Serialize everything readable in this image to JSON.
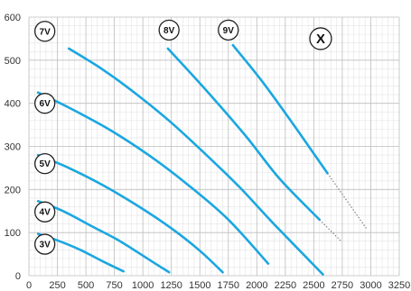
{
  "chart_data": {
    "type": "line",
    "title": "",
    "xlabel": "",
    "ylabel": "",
    "xlim": [
      0,
      3250
    ],
    "ylim": [
      0,
      600
    ],
    "x_ticks": [
      0,
      250,
      500,
      750,
      1000,
      1250,
      1500,
      1750,
      2000,
      2250,
      2500,
      2750,
      3000,
      3250
    ],
    "y_ticks": [
      0,
      100,
      200,
      300,
      400,
      500,
      600
    ],
    "grid": true,
    "minor_grid": true,
    "legend": "none",
    "colors": {
      "curve": "#1aa7e0",
      "extension": "#777777"
    },
    "series": [
      {
        "name": "3V",
        "points": [
          [
            80,
            97
          ],
          [
            250,
            82
          ],
          [
            450,
            60
          ],
          [
            650,
            33
          ],
          [
            830,
            10
          ]
        ]
      },
      {
        "name": "4V",
        "points": [
          [
            80,
            173
          ],
          [
            300,
            150
          ],
          [
            550,
            115
          ],
          [
            800,
            80
          ],
          [
            1050,
            38
          ],
          [
            1230,
            8
          ]
        ]
      },
      {
        "name": "5V",
        "points": [
          [
            80,
            280
          ],
          [
            350,
            250
          ],
          [
            650,
            210
          ],
          [
            950,
            163
          ],
          [
            1250,
            110
          ],
          [
            1500,
            58
          ],
          [
            1700,
            8
          ]
        ]
      },
      {
        "name": "6V",
        "points": [
          [
            80,
            425
          ],
          [
            350,
            390
          ],
          [
            700,
            340
          ],
          [
            1050,
            280
          ],
          [
            1400,
            210
          ],
          [
            1750,
            130
          ],
          [
            2100,
            28
          ]
        ]
      },
      {
        "name": "7V",
        "points": [
          [
            350,
            527
          ],
          [
            650,
            478
          ],
          [
            950,
            420
          ],
          [
            1250,
            355
          ],
          [
            1550,
            282
          ],
          [
            1850,
            205
          ],
          [
            2150,
            120
          ],
          [
            2580,
            3
          ]
        ]
      },
      {
        "name": "8V",
        "points": [
          [
            1220,
            527
          ],
          [
            1550,
            432
          ],
          [
            1900,
            325
          ],
          [
            2200,
            225
          ],
          [
            2550,
            130
          ]
        ],
        "extension": [
          [
            2550,
            130
          ],
          [
            2740,
            80
          ]
        ]
      },
      {
        "name": "9V",
        "points": [
          [
            1790,
            535
          ],
          [
            2050,
            450
          ],
          [
            2350,
            340
          ],
          [
            2620,
            238
          ]
        ],
        "extension": [
          [
            2620,
            238
          ],
          [
            2960,
            110
          ]
        ]
      }
    ],
    "annotations": [
      {
        "text": "3V",
        "x": 140,
        "y": 73
      },
      {
        "text": "4V",
        "x": 140,
        "y": 148
      },
      {
        "text": "5V",
        "x": 140,
        "y": 260
      },
      {
        "text": "6V",
        "x": 140,
        "y": 400
      },
      {
        "text": "7V",
        "x": 140,
        "y": 567
      },
      {
        "text": "8V",
        "x": 1230,
        "y": 570
      },
      {
        "text": "9V",
        "x": 1750,
        "y": 570
      },
      {
        "text": "X",
        "x": 2560,
        "y": 550
      }
    ]
  }
}
